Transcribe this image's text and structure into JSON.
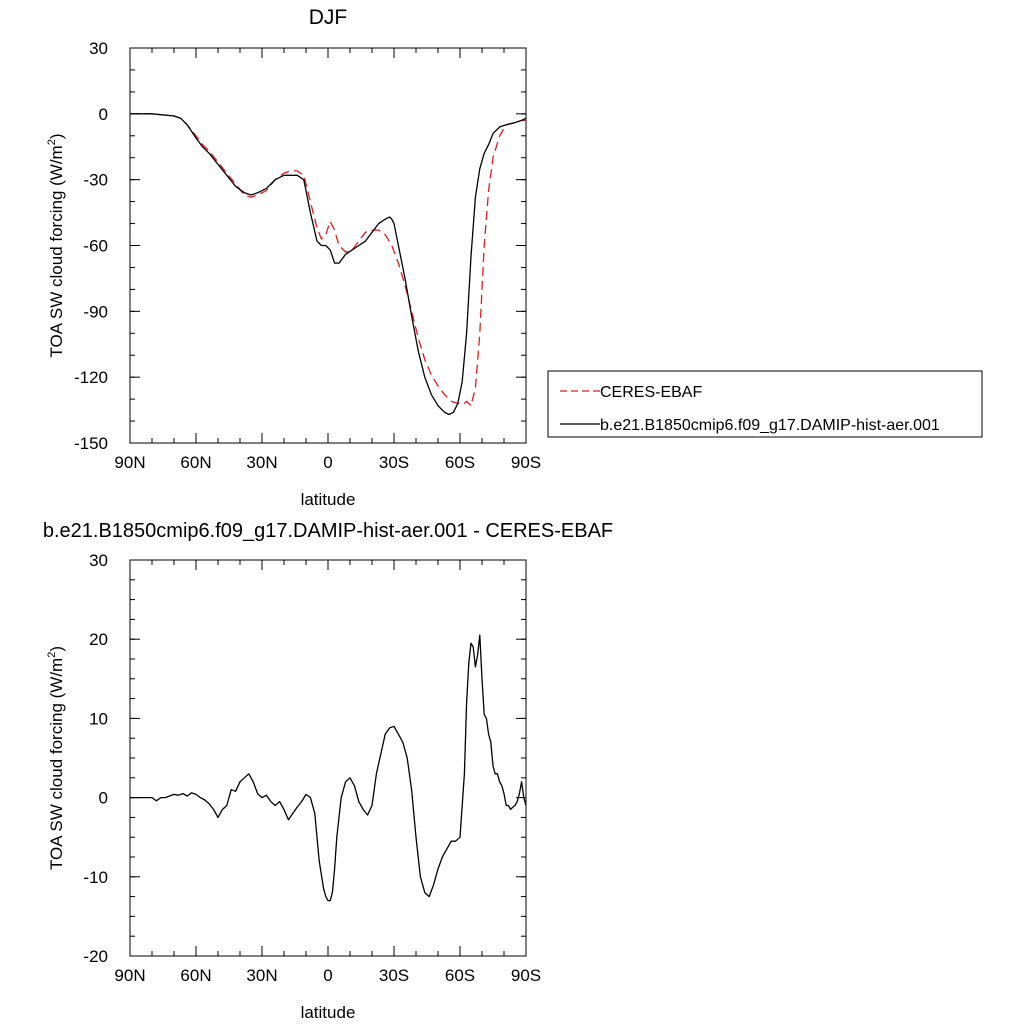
{
  "chart_data": [
    {
      "type": "line",
      "title": "DJF",
      "xlabel": "latitude",
      "ylabel": "TOA SW cloud forcing (W/m",
      "ylabel_sup": "2",
      "ylabel_close": ")",
      "xlim": [
        90,
        -90
      ],
      "ylim": [
        -150,
        30
      ],
      "xticks": [
        {
          "value": 90,
          "label": "90N"
        },
        {
          "value": 60,
          "label": "60N"
        },
        {
          "value": 30,
          "label": "30N"
        },
        {
          "value": 0,
          "label": "0"
        },
        {
          "value": -30,
          "label": "30S"
        },
        {
          "value": -60,
          "label": "60S"
        },
        {
          "value": -90,
          "label": "90S"
        }
      ],
      "yticks": [
        {
          "value": 30,
          "label": "30"
        },
        {
          "value": 0,
          "label": "0"
        },
        {
          "value": -30,
          "label": "-30"
        },
        {
          "value": -60,
          "label": "-60"
        },
        {
          "value": -90,
          "label": "-90"
        },
        {
          "value": -120,
          "label": "-120"
        },
        {
          "value": -150,
          "label": "-150"
        }
      ],
      "legend_position": "right",
      "series": [
        {
          "name": "CERES-EBAF",
          "color": "#e31a1c",
          "dash": "dashed",
          "x": [
            90,
            85,
            80,
            75,
            70,
            67,
            64,
            60,
            57,
            54,
            50,
            46,
            42,
            38,
            35,
            32,
            28,
            24,
            20,
            17,
            14,
            11,
            8,
            5,
            3,
            1,
            -1,
            -3,
            -5,
            -8,
            -11,
            -14,
            -17,
            -20,
            -23,
            -26,
            -29,
            -32,
            -35,
            -38,
            -41,
            -44,
            -47,
            -50,
            -53,
            -56,
            -59,
            -62,
            -63,
            -65,
            -67,
            -69,
            -71,
            -73,
            -75,
            -78,
            -81,
            -85,
            -88,
            -90
          ],
          "y": [
            0,
            0,
            0,
            -0.5,
            -1,
            -2,
            -5,
            -10,
            -14,
            -17,
            -22,
            -27,
            -32,
            -37,
            -38,
            -37,
            -35,
            -30,
            -27,
            -26,
            -26,
            -28,
            -40,
            -52,
            -57,
            -55,
            -49,
            -53,
            -60,
            -63,
            -62,
            -58,
            -54,
            -53,
            -53,
            -55,
            -60,
            -68,
            -78,
            -90,
            -102,
            -112,
            -119,
            -124,
            -128,
            -131,
            -132,
            -132,
            -131,
            -133,
            -125,
            -100,
            -60,
            -35,
            -20,
            -10,
            -5,
            -4,
            -3,
            -3
          ]
        },
        {
          "name": "b.e21.B1850cmip6.f09_g17.DAMIP-hist-aer.001",
          "color": "#000000",
          "dash": "solid",
          "x": [
            90,
            85,
            80,
            75,
            70,
            67,
            64,
            60,
            57,
            54,
            50,
            46,
            42,
            38,
            35,
            32,
            28,
            24,
            20,
            17,
            14,
            11,
            8,
            5,
            3,
            1,
            -1,
            -3,
            -5,
            -8,
            -11,
            -14,
            -17,
            -20,
            -23,
            -26,
            -28,
            -29,
            -30,
            -32,
            -35,
            -38,
            -41,
            -44,
            -47,
            -50,
            -53,
            -55,
            -57,
            -59,
            -61,
            -63,
            -65,
            -67,
            -69,
            -71,
            -73,
            -75,
            -78,
            -81,
            -85,
            -88,
            -90
          ],
          "y": [
            0,
            0,
            0,
            -0.5,
            -1,
            -2,
            -5,
            -11,
            -15,
            -18,
            -23,
            -28,
            -33,
            -36,
            -37,
            -36,
            -34,
            -30,
            -28,
            -28,
            -28,
            -30,
            -45,
            -58,
            -60,
            -60,
            -62,
            -68,
            -68,
            -64,
            -62,
            -60,
            -58,
            -54,
            -50,
            -48,
            -47,
            -48,
            -50,
            -60,
            -75,
            -92,
            -108,
            -120,
            -128,
            -133,
            -136,
            -137,
            -136,
            -132,
            -122,
            -100,
            -65,
            -38,
            -25,
            -18,
            -14,
            -9,
            -6,
            -5,
            -4,
            -3,
            -2
          ]
        }
      ]
    },
    {
      "type": "line",
      "title": "b.e21.B1850cmip6.f09_g17.DAMIP-hist-aer.001 - CERES-EBAF",
      "xlabel": "latitude",
      "ylabel": "TOA SW cloud forcing (W/m",
      "ylabel_sup": "2",
      "ylabel_close": ")",
      "xlim": [
        90,
        -90
      ],
      "ylim": [
        -20,
        30
      ],
      "xticks": [
        {
          "value": 90,
          "label": "90N"
        },
        {
          "value": 60,
          "label": "60N"
        },
        {
          "value": 30,
          "label": "30N"
        },
        {
          "value": 0,
          "label": "0"
        },
        {
          "value": -30,
          "label": "30S"
        },
        {
          "value": -60,
          "label": "60S"
        },
        {
          "value": -90,
          "label": "90S"
        }
      ],
      "yticks": [
        {
          "value": 30,
          "label": "30"
        },
        {
          "value": 20,
          "label": "20"
        },
        {
          "value": 10,
          "label": "10"
        },
        {
          "value": 0,
          "label": "0"
        },
        {
          "value": -10,
          "label": "-10"
        },
        {
          "value": -20,
          "label": "-20"
        }
      ],
      "series": [
        {
          "color": "#000000",
          "dash": "solid",
          "x": [
            90,
            87,
            84,
            82,
            80,
            78,
            76,
            74,
            72,
            70,
            68,
            66,
            64,
            62,
            60,
            58,
            56,
            54,
            52,
            50,
            48,
            46,
            44,
            42,
            40,
            38,
            36,
            34,
            32,
            30,
            28,
            26,
            24,
            22,
            20,
            18,
            16,
            14,
            12,
            10,
            8,
            6,
            4,
            2,
            1,
            0,
            -1,
            -2,
            -3,
            -4,
            -6,
            -8,
            -10,
            -12,
            -14,
            -16,
            -18,
            -20,
            -22,
            -24,
            -26,
            -28,
            -30,
            -32,
            -34,
            -36,
            -38,
            -40,
            -42,
            -44,
            -46,
            -48,
            -50,
            -52,
            -54,
            -56,
            -58,
            -60,
            -62,
            -63,
            -64,
            -65,
            -66,
            -67,
            -68,
            -69,
            -70,
            -71,
            -72,
            -73,
            -74,
            -75,
            -76,
            -77,
            -78,
            -79,
            -80,
            -81,
            -82,
            -83,
            -84,
            -85,
            -86,
            -87,
            -88,
            -89,
            -90
          ],
          "y": [
            0,
            0,
            0,
            0,
            0,
            -0.4,
            0,
            0,
            0.2,
            0.4,
            0.3,
            0.5,
            0.2,
            0.6,
            0.4,
            0,
            -0.3,
            -0.8,
            -1.5,
            -2.5,
            -1.5,
            -1,
            1,
            0.8,
            2,
            2.5,
            3,
            2,
            0.5,
            0,
            0.3,
            -0.5,
            -1,
            -0.5,
            -1.5,
            -2.8,
            -2,
            -1.2,
            -0.5,
            0.4,
            0,
            -2,
            -8,
            -11.5,
            -12.5,
            -13,
            -13,
            -12,
            -9,
            -5,
            0,
            2,
            2.5,
            1.5,
            -0.5,
            -1.5,
            -2.2,
            -1,
            3,
            5.5,
            8,
            8.8,
            9,
            8,
            7,
            5,
            1,
            -5,
            -10,
            -12,
            -12.5,
            -11,
            -9,
            -7.5,
            -6.5,
            -5.5,
            -5.5,
            -5,
            3,
            12,
            17,
            19.5,
            19,
            16.5,
            18,
            20.5,
            15,
            10.5,
            10,
            8,
            7,
            4,
            3,
            3,
            2,
            1.5,
            0.5,
            -1,
            -1,
            -1.5,
            -1.2,
            -1,
            -0.5,
            0.5,
            2,
            0,
            -1
          ]
        }
      ]
    }
  ]
}
